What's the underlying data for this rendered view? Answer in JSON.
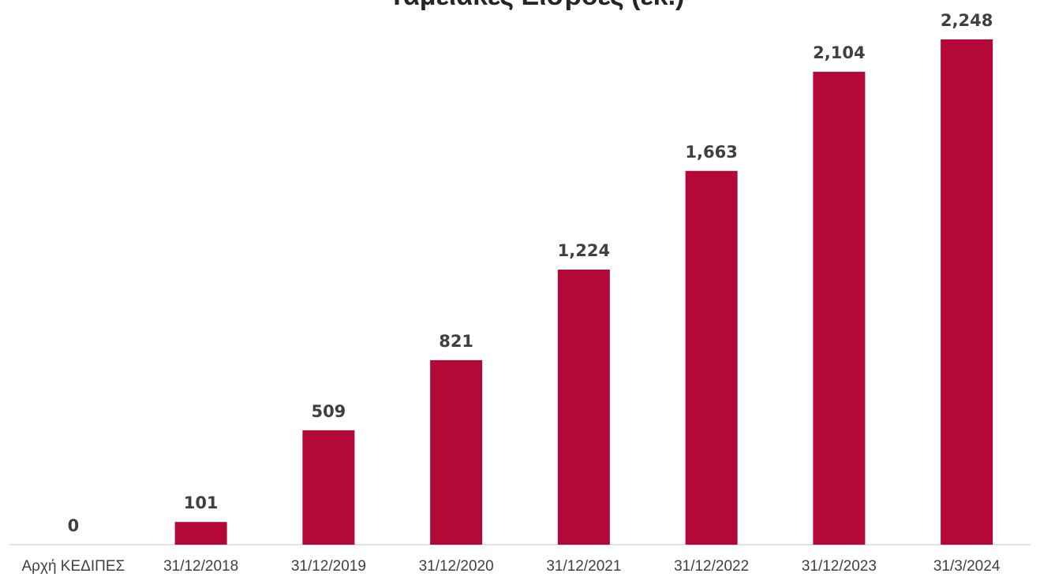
{
  "chart_data": {
    "type": "bar",
    "title": "Ταμειακές Εισροές (εκ.)",
    "xlabel": "",
    "ylabel": "",
    "categories": [
      "Αρχή ΚΕΔΙΠΕΣ",
      "31/12/2018",
      "31/12/2019",
      "31/12/2020",
      "31/12/2021",
      "31/12/2022",
      "31/12/2023",
      "31/3/2024"
    ],
    "values": [
      0,
      101,
      509,
      821,
      1224,
      1663,
      2104,
      2248
    ],
    "value_labels": [
      "0",
      "101",
      "509",
      "821",
      "1,224",
      "1,663",
      "2,104",
      "2,248"
    ],
    "ylim": [
      0,
      2248
    ],
    "grid": false,
    "legend": "none",
    "colors": {
      "bar": "#B30838",
      "axis": "#D9D9D9",
      "text": "#404040"
    }
  }
}
